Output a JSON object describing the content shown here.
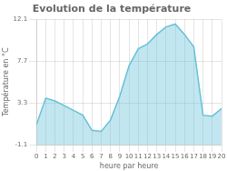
{
  "chart_data": {
    "type": "area",
    "title": "Evolution de la température",
    "x_label": "heure par heure",
    "y_label": "Température en °C",
    "x": [
      0,
      1,
      2,
      3,
      4,
      5,
      6,
      7,
      8,
      9,
      10,
      11,
      12,
      13,
      14,
      15,
      16,
      17,
      18,
      19,
      20
    ],
    "values": [
      1.0,
      3.8,
      3.5,
      3.0,
      2.5,
      2.0,
      0.4,
      0.3,
      1.5,
      4.0,
      7.2,
      9.0,
      9.5,
      10.5,
      11.3,
      11.6,
      10.5,
      9.2,
      2.0,
      1.9,
      2.7
    ],
    "color": "#66c0d8",
    "xlim": [
      0,
      20
    ],
    "xticks": [
      0,
      1,
      2,
      3,
      4,
      5,
      6,
      7,
      8,
      9,
      10,
      11,
      12,
      13,
      14,
      15,
      16,
      17,
      18,
      19,
      20
    ],
    "ylim": [
      -1.1,
      12.1
    ],
    "yticks": [
      -1.1,
      3.3,
      7.7,
      12.1
    ],
    "grid": true
  }
}
